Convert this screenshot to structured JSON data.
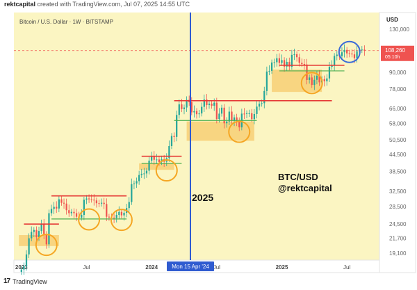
{
  "header": {
    "author": "rektcapital",
    "text": "created with TradingView.com, Jul 07, 2025 14:55 UTC"
  },
  "footer": {
    "brand": "TradingView",
    "logo_glyph": "17"
  },
  "colors": {
    "plot_bg": "#fbf5c2",
    "candle_up": "#26a69a",
    "candle_down": "#ef5350",
    "range_box": "#f7c96b",
    "circle_orange": "#f5a623",
    "circle_blue": "#3a6ad8",
    "halving_line": "#2f5bd0",
    "resistance": "#e53935",
    "support": "#4caf50"
  },
  "chart_data": {
    "type": "candlestick",
    "title": "Bitcoin / U.S. Dollar · 1W · BITSTAMP",
    "currency": "USD",
    "y_scale": "log",
    "ylim": [
      18000,
      150000
    ],
    "y_ticks": [
      "130,000",
      "90,000",
      "78,000",
      "66,000",
      "58,000",
      "50,500",
      "44,500",
      "38,500",
      "32,500",
      "28,500",
      "24,500",
      "21,700",
      "19,100"
    ],
    "y_tick_values": [
      130000,
      90000,
      78000,
      66000,
      58000,
      50500,
      44500,
      38500,
      32500,
      28500,
      24500,
      21700,
      19100
    ],
    "x_ticks": [
      "2023",
      "Jul",
      "2024",
      "Jul",
      "2025",
      "Jul"
    ],
    "x_tick_weeks": [
      0,
      26,
      52,
      78,
      104,
      130
    ],
    "xlim_weeks": [
      -3,
      143
    ],
    "last_price": {
      "label": "108,260",
      "value": 108260,
      "countdown": "05:10h"
    },
    "crosshair_label": "Mon 15 Apr '24",
    "crosshair_week": 67.5,
    "annotations": [
      "BTC/USD",
      "@rektcapital",
      "2025"
    ],
    "closes": [
      16600,
      17100,
      18900,
      21700,
      22900,
      23300,
      21900,
      23100,
      24400,
      22500,
      20600,
      26900,
      27900,
      28400,
      28000,
      30300,
      29400,
      29200,
      27600,
      26900,
      27200,
      26900,
      26100,
      25900,
      26500,
      30200,
      30500,
      30300,
      30200,
      30000,
      29300,
      29200,
      29400,
      29100,
      26100,
      26000,
      25900,
      25800,
      26500,
      27200,
      26400,
      27000,
      28100,
      29600,
      34500,
      34700,
      35400,
      37300,
      37700,
      37800,
      38700,
      42200,
      43900,
      42500,
      42600,
      41700,
      42700,
      41800,
      43100,
      47800,
      52100,
      51700,
      62400,
      68300,
      65600,
      66500,
      71000,
      69600,
      63800,
      64500,
      62800,
      63200,
      66900,
      71200,
      67900,
      68700,
      67500,
      69300,
      60300,
      63100,
      66400,
      58100,
      59000,
      64200,
      59300,
      61100,
      58900,
      56100,
      63100,
      63000,
      63300,
      63300,
      60200,
      62900,
      67000,
      68700,
      69000,
      76600,
      90500,
      91000,
      97800,
      98000,
      101400,
      97400,
      99800,
      94400,
      98300,
      94300,
      104400,
      104900,
      102300,
      97500,
      96500,
      96100,
      84200,
      86000,
      80700,
      84300,
      87300,
      82500,
      84800,
      83200,
      85300,
      94200,
      95000,
      103400,
      104600,
      103200,
      106700,
      108900,
      105700,
      105500,
      104800,
      101500,
      107600,
      108800,
      109200,
      108260
    ],
    "zones": [
      {
        "weeks": [
          -1,
          15
        ],
        "low": 20300,
        "high": 22300
      },
      {
        "weeks": [
          47,
          61
        ],
        "low": 39000,
        "high": 41200
      },
      {
        "weeks": [
          66,
          93
        ],
        "low": 50000,
        "high": 59000
      },
      {
        "weeks": [
          100,
          120
        ],
        "low": 76000,
        "high": 92000
      }
    ],
    "resistances": [
      {
        "weeks": [
          1,
          15
        ],
        "level": 24500
      },
      {
        "weeks": [
          12,
          42
        ],
        "level": 31200
      },
      {
        "weeks": [
          48,
          64
        ],
        "level": 43800
      },
      {
        "weeks": [
          61,
          124
        ],
        "level": 70500
      },
      {
        "weeks": [
          103,
          129
        ],
        "level": 95500
      }
    ],
    "supports": [
      {
        "weeks": [
          12,
          42
        ],
        "level": 25600
      },
      {
        "weeks": [
          48,
          64
        ],
        "level": 41200
      },
      {
        "weeks": [
          61,
          94
        ],
        "level": 59500
      },
      {
        "weeks": [
          103,
          129
        ],
        "level": 91000
      }
    ],
    "circles": [
      {
        "week": 10,
        "value": 20500,
        "color": "orange"
      },
      {
        "week": 27,
        "value": 25500,
        "color": "orange"
      },
      {
        "week": 40,
        "value": 25400,
        "color": "orange"
      },
      {
        "week": 58,
        "value": 38800,
        "color": "orange"
      },
      {
        "week": 87,
        "value": 54000,
        "color": "orange"
      },
      {
        "week": 116,
        "value": 82000,
        "color": "orange"
      },
      {
        "week": 131,
        "value": 107000,
        "color": "blue"
      }
    ]
  }
}
